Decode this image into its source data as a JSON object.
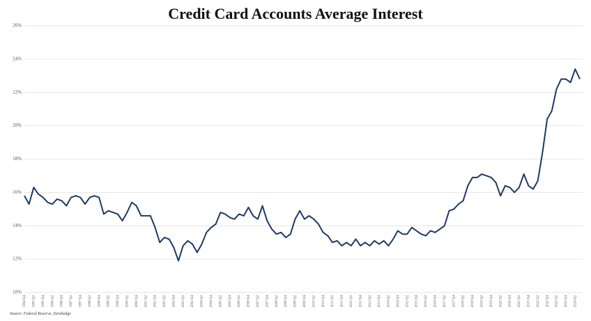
{
  "chart_data": {
    "type": "line",
    "title": "Credit Card Accounts Average Interest",
    "source": "Source: Federal Reserve, Zerohedge",
    "categories": [
      "1994 Q4",
      null,
      "1995 Q2",
      null,
      "1995 Q4",
      null,
      "1996 Q2",
      null,
      "1996 Q4",
      null,
      "1997 Q2",
      null,
      "1997 Q4",
      null,
      "1998 Q2",
      null,
      "1998 Q4",
      null,
      "1999 Q2",
      null,
      "1999 Q4",
      null,
      "2000 Q2",
      null,
      "2000 Q4",
      null,
      "2001 Q2",
      null,
      "2001 Q4",
      null,
      "2002 Q2",
      null,
      "2002 Q4",
      null,
      "2003 Q2",
      null,
      "2003 Q4",
      null,
      "2004 Q2",
      null,
      "2004 Q4",
      null,
      "2005 Q2",
      null,
      "2005 Q4",
      null,
      "2006 Q2",
      null,
      "2006 Q4",
      null,
      "2007 Q2",
      null,
      "2007 Q4",
      null,
      "2008 Q2",
      null,
      "2008 Q4",
      null,
      "2009 Q2",
      null,
      "2009 Q4",
      null,
      "2010 Q2",
      null,
      "2010 Q4",
      null,
      "2011 Q2",
      null,
      "2011 Q4",
      null,
      "2012 Q2",
      null,
      "2012 Q4",
      null,
      "2013 Q2",
      null,
      "2013 Q4",
      null,
      "2014 Q2",
      null,
      "2014 Q4",
      null,
      "2015 Q2",
      null,
      "2015 Q4",
      null,
      "2016 Q2",
      null,
      "2016 Q4",
      null,
      "2017 Q2",
      null,
      "2017 Q4",
      null,
      "2018 Q2",
      null,
      "2018 Q4",
      null,
      "2019 Q2",
      null,
      "2019 Q4",
      null,
      "2020 Q2",
      null,
      "2020 Q4",
      null,
      "2021 Q2",
      null,
      "2021 Q4",
      null,
      "2022 Q2",
      null,
      "2022 Q4",
      null,
      "2023 Q2",
      null,
      "2023 Q4",
      null,
      "2024 Q2",
      null
    ],
    "values": [
      15.8,
      15.3,
      16.3,
      15.9,
      15.7,
      15.4,
      15.3,
      15.6,
      15.5,
      15.2,
      15.7,
      15.8,
      15.7,
      15.3,
      15.7,
      15.8,
      15.7,
      14.7,
      14.9,
      14.8,
      14.7,
      14.3,
      14.8,
      15.4,
      15.2,
      14.6,
      14.6,
      14.6,
      13.9,
      13.0,
      13.3,
      13.2,
      12.7,
      11.9,
      12.8,
      13.1,
      12.9,
      12.4,
      12.9,
      13.6,
      13.9,
      14.1,
      14.8,
      14.7,
      14.5,
      14.4,
      14.7,
      14.6,
      15.1,
      14.6,
      14.4,
      15.2,
      14.3,
      13.8,
      13.5,
      13.6,
      13.3,
      13.5,
      14.4,
      14.9,
      14.4,
      14.6,
      14.4,
      14.1,
      13.6,
      13.4,
      13.0,
      13.1,
      12.8,
      13.0,
      12.8,
      13.2,
      12.8,
      13.0,
      12.8,
      13.1,
      12.9,
      13.1,
      12.8,
      13.2,
      13.7,
      13.5,
      13.5,
      13.9,
      13.7,
      13.5,
      13.4,
      13.7,
      13.6,
      13.8,
      14.0,
      14.9,
      15.0,
      15.3,
      15.5,
      16.4,
      16.9,
      16.9,
      17.1,
      17.0,
      16.9,
      16.6,
      15.8,
      16.4,
      16.3,
      16.0,
      16.3,
      17.1,
      16.4,
      16.2,
      16.7,
      18.4,
      20.4,
      20.9,
      22.2,
      22.8,
      22.8,
      22.6,
      23.4,
      22.8
    ],
    "color": "#1f3864",
    "ylim": [
      10,
      26
    ],
    "yticks": [
      {
        "value": 10,
        "label": "10%"
      },
      {
        "value": 12,
        "label": "12%"
      },
      {
        "value": 14,
        "label": "14%"
      },
      {
        "value": 16,
        "label": "16%"
      },
      {
        "value": 18,
        "label": "18%"
      },
      {
        "value": 20,
        "label": "20%"
      },
      {
        "value": 22,
        "label": "22%"
      },
      {
        "value": 24,
        "label": "24%"
      },
      {
        "value": 26,
        "label": "26%"
      }
    ],
    "grid": true
  }
}
